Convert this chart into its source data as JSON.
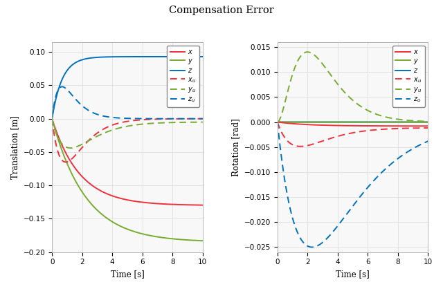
{
  "title": "Compensation Error",
  "left_ylabel": "Translation [m]",
  "right_ylabel": "Rotation [rad]",
  "xlabel": "Time [s]",
  "xlim": [
    0,
    10
  ],
  "left_ylim": [
    -0.2,
    0.115
  ],
  "right_ylim": [
    -0.026,
    0.016
  ],
  "left_yticks": [
    -0.2,
    -0.15,
    -0.1,
    -0.05,
    0,
    0.05,
    0.1
  ],
  "right_yticks": [
    -0.025,
    -0.02,
    -0.015,
    -0.01,
    -0.005,
    0,
    0.005,
    0.01,
    0.015
  ],
  "xticks": [
    0,
    2,
    4,
    6,
    8,
    10
  ],
  "colors": {
    "red": "#F0303A",
    "green": "#77AC30",
    "blue": "#0072BD"
  },
  "grid_color": "#e0e0e0",
  "bg_color": "#f8f8f8"
}
